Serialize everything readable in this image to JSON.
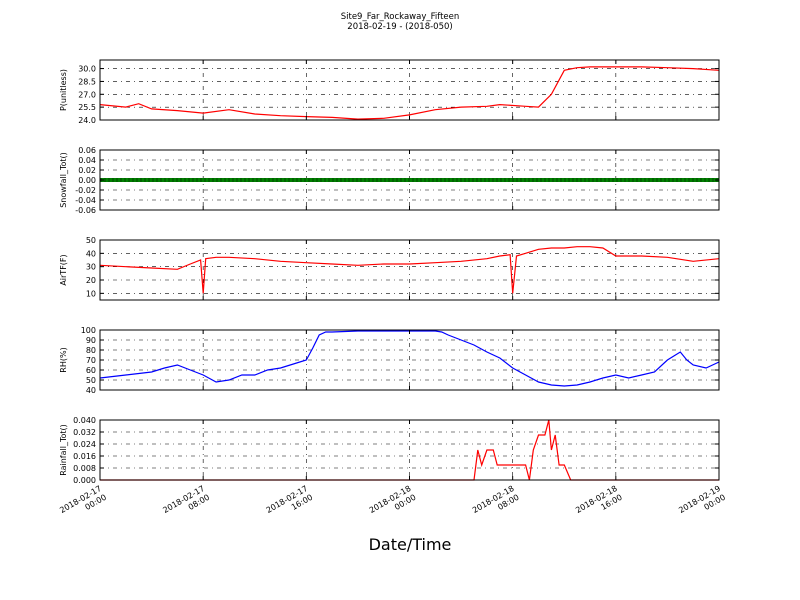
{
  "title": "Site9_Far_Rockaway_Fifteen",
  "subtitle": "2018-02-19 - (2018-050)",
  "xlabel": "Date/Time",
  "x_ticks": [
    {
      "l1": "2018-02-17",
      "l2": "00:00"
    },
    {
      "l1": "2018-02-17",
      "l2": "08:00"
    },
    {
      "l1": "2018-02-17",
      "l2": "16:00"
    },
    {
      "l1": "2018-02-18",
      "l2": "00:00"
    },
    {
      "l1": "2018-02-18",
      "l2": "08:00"
    },
    {
      "l1": "2018-02-18",
      "l2": "16:00"
    },
    {
      "l1": "2018-02-19",
      "l2": "00:00"
    }
  ],
  "chart_data": [
    {
      "type": "line",
      "ylabel": "P(unitless)",
      "ylim": [
        24.0,
        31.0
      ],
      "yticks": [
        "24.0",
        "25.5",
        "27.0",
        "28.5",
        "30.0"
      ],
      "color": "#ff0000",
      "x_hours": [
        0,
        2,
        3,
        4,
        6,
        8,
        10,
        12,
        14,
        16,
        18,
        20,
        22,
        24,
        26,
        28,
        30,
        31,
        33,
        34,
        35,
        36,
        37,
        38,
        40,
        42,
        44,
        46,
        48
      ],
      "values": [
        25.8,
        25.5,
        25.9,
        25.3,
        25.1,
        24.8,
        25.2,
        24.7,
        24.5,
        24.4,
        24.3,
        24.1,
        24.2,
        24.6,
        25.2,
        25.5,
        25.6,
        25.8,
        25.6,
        25.5,
        27.0,
        29.8,
        30.1,
        30.2,
        30.2,
        30.2,
        30.1,
        30.0,
        29.8
      ]
    },
    {
      "type": "line",
      "ylabel": "Snowfall_Tot()",
      "ylim": [
        -0.06,
        0.06
      ],
      "yticks": [
        "-0.06",
        "-0.04",
        "-0.02",
        "0.00",
        "0.02",
        "0.04",
        "0.06"
      ],
      "color": "#008000",
      "x_hours": [
        0,
        48
      ],
      "values": [
        0.0,
        0.0
      ]
    },
    {
      "type": "line",
      "ylabel": "AirTF(F)",
      "ylim": [
        5,
        50
      ],
      "yticks": [
        "10",
        "20",
        "30",
        "40",
        "50"
      ],
      "color": "#ff0000",
      "x_hours": [
        0,
        2,
        4,
        6,
        7,
        7.8,
        8,
        8.2,
        9,
        10,
        12,
        14,
        16,
        18,
        20,
        22,
        24,
        26,
        28,
        30,
        31,
        31.8,
        32,
        32.3,
        33,
        34,
        35,
        36,
        37,
        38,
        39,
        40,
        42,
        44,
        46,
        48
      ],
      "values": [
        31,
        30,
        29,
        28,
        32,
        35,
        10,
        36,
        37,
        37,
        36,
        34,
        33,
        32,
        31,
        32,
        32,
        33,
        34,
        36,
        38,
        39,
        10,
        38,
        40,
        43,
        44,
        44,
        45,
        45,
        44,
        38,
        38,
        37,
        34,
        36
      ]
    },
    {
      "type": "line",
      "ylabel": "RH(%)",
      "ylim": [
        40,
        100
      ],
      "yticks": [
        "40",
        "50",
        "60",
        "70",
        "80",
        "90",
        "100"
      ],
      "color": "#0000ff",
      "x_hours": [
        0,
        2,
        4,
        5,
        6,
        7,
        8,
        9,
        10,
        11,
        12,
        13,
        14,
        15,
        16,
        16.5,
        17,
        17.5,
        18,
        20,
        24,
        26,
        26.5,
        27,
        28,
        29,
        30,
        31,
        32,
        33,
        34,
        35,
        36,
        37,
        38,
        39,
        40,
        41,
        42,
        43,
        44,
        45,
        45.5,
        46,
        47,
        48
      ],
      "values": [
        52,
        55,
        58,
        62,
        65,
        60,
        55,
        48,
        50,
        55,
        55,
        60,
        62,
        66,
        70,
        82,
        95,
        98,
        98,
        99,
        99,
        99,
        98,
        95,
        90,
        85,
        78,
        72,
        62,
        55,
        48,
        45,
        44,
        45,
        48,
        52,
        55,
        52,
        55,
        58,
        70,
        78,
        70,
        65,
        62,
        68
      ]
    },
    {
      "type": "line",
      "ylabel": "Rainfall_Tot()",
      "ylim": [
        0,
        0.04
      ],
      "yticks": [
        "0.000",
        "0.008",
        "0.016",
        "0.024",
        "0.032",
        "0.040"
      ],
      "color": "#ff0000",
      "x_hours": [
        0,
        29,
        29.3,
        29.6,
        30,
        30.5,
        30.8,
        31,
        31.5,
        32,
        32.5,
        33,
        33.3,
        33.6,
        34,
        34.5,
        34.8,
        35,
        35.3,
        35.6,
        36,
        36.5,
        48
      ],
      "values": [
        0,
        0,
        0.02,
        0.01,
        0.02,
        0.02,
        0.01,
        0.01,
        0.01,
        0.01,
        0.01,
        0.01,
        0,
        0.02,
        0.03,
        0.03,
        0.04,
        0.02,
        0.03,
        0.01,
        0.01,
        0,
        0
      ]
    }
  ]
}
